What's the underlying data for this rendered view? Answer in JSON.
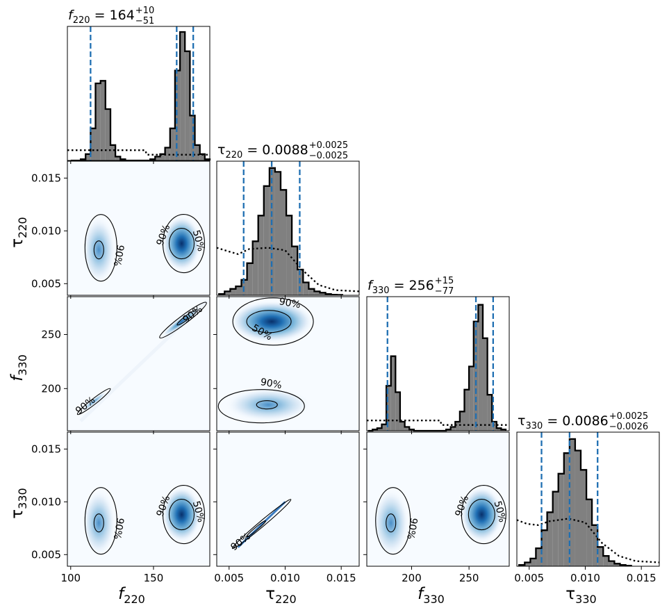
{
  "chart_data": {
    "type": "corner",
    "params": [
      {
        "key": "f220",
        "sym": "f",
        "sub": "220",
        "range": [
          98,
          184
        ],
        "ticks": [
          100,
          150
        ],
        "tick_labels": [
          "100",
          "150"
        ],
        "title_value": "164",
        "title_plus": "+10",
        "title_minus": "−51",
        "quantiles": [
          112,
          164,
          174
        ]
      },
      {
        "key": "tau220",
        "sym": "τ",
        "sub": "220",
        "range": [
          0.0039,
          0.0166
        ],
        "ticks": [
          0.005,
          0.01,
          0.015
        ],
        "tick_labels": [
          "0.005",
          "0.010",
          "0.015"
        ],
        "title_value": "0.0088",
        "title_plus": "+0.0025",
        "title_minus": "−0.0025",
        "quantiles": [
          0.0063,
          0.0088,
          0.0113
        ]
      },
      {
        "key": "f330",
        "sym": "f",
        "sub": "330",
        "range": [
          161,
          285
        ],
        "ticks": [
          200,
          250
        ],
        "tick_labels": [
          "200",
          "250"
        ],
        "title_value": "256",
        "title_plus": "+15",
        "title_minus": "−77",
        "quantiles": [
          179,
          256,
          271
        ]
      },
      {
        "key": "tau330",
        "sym": "τ",
        "sub": "330",
        "range": [
          0.0039,
          0.0166
        ],
        "ticks": [
          0.005,
          0.01,
          0.015
        ],
        "tick_labels": [
          "0.005",
          "0.010",
          "0.015"
        ],
        "title_value": "0.0086",
        "title_plus": "+0.0025",
        "title_minus": "−0.0026",
        "quantiles": [
          0.0061,
          0.0086,
          0.0111
        ]
      }
    ],
    "histograms": [
      {
        "param": "f220",
        "bins": [
          [
            100,
            0
          ],
          [
            103,
            0
          ],
          [
            106,
            0.01
          ],
          [
            109,
            0.05
          ],
          [
            112,
            0.25
          ],
          [
            115,
            0.6
          ],
          [
            118,
            0.62
          ],
          [
            121,
            0.4
          ],
          [
            124,
            0.12
          ],
          [
            127,
            0.03
          ],
          [
            130,
            0.01
          ],
          [
            133,
            0
          ],
          [
            136,
            0
          ],
          [
            139,
            0
          ],
          [
            142,
            0
          ],
          [
            145,
            0
          ],
          [
            148,
            0.01
          ],
          [
            151,
            0.03
          ],
          [
            154,
            0.05
          ],
          [
            157,
            0.1
          ],
          [
            160,
            0.25
          ],
          [
            163,
            0.7
          ],
          [
            166,
            1.0
          ],
          [
            169,
            0.85
          ],
          [
            172,
            0.35
          ],
          [
            175,
            0.12
          ],
          [
            178,
            0.05
          ],
          [
            181,
            0.01
          ]
        ],
        "prior": [
          [
            98,
            0.08
          ],
          [
            145,
            0.08
          ],
          [
            146,
            0.045
          ],
          [
            184,
            0.045
          ]
        ]
      },
      {
        "param": "tau220",
        "bins": [
          [
            0.0041,
            0.01
          ],
          [
            0.0046,
            0.03
          ],
          [
            0.0051,
            0.05
          ],
          [
            0.0056,
            0.07
          ],
          [
            0.0061,
            0.12
          ],
          [
            0.0066,
            0.25
          ],
          [
            0.0071,
            0.42
          ],
          [
            0.0076,
            0.62
          ],
          [
            0.0081,
            0.85
          ],
          [
            0.0086,
            0.99
          ],
          [
            0.0091,
            0.96
          ],
          [
            0.0096,
            0.82
          ],
          [
            0.0101,
            0.62
          ],
          [
            0.0106,
            0.38
          ],
          [
            0.0111,
            0.2
          ],
          [
            0.0116,
            0.1
          ],
          [
            0.0121,
            0.05
          ],
          [
            0.0126,
            0.03
          ],
          [
            0.0131,
            0.02
          ],
          [
            0.0136,
            0.01
          ],
          [
            0.0141,
            0.005
          ],
          [
            0.0146,
            0.003
          ]
        ],
        "prior": [
          [
            0.0039,
            0.37
          ],
          [
            0.005,
            0.34
          ],
          [
            0.0058,
            0.32
          ],
          [
            0.0068,
            0.36
          ],
          [
            0.0085,
            0.37
          ],
          [
            0.01,
            0.35
          ],
          [
            0.0115,
            0.2
          ],
          [
            0.013,
            0.08
          ],
          [
            0.0145,
            0.04
          ],
          [
            0.0166,
            0.03
          ]
        ]
      },
      {
        "param": "f330",
        "bins": [
          [
            162,
            0
          ],
          [
            166,
            0.01
          ],
          [
            170,
            0.02
          ],
          [
            174,
            0.05
          ],
          [
            178,
            0.35
          ],
          [
            182,
            0.58
          ],
          [
            186,
            0.3
          ],
          [
            190,
            0.07
          ],
          [
            194,
            0.03
          ],
          [
            198,
            0.01
          ],
          [
            202,
            0
          ],
          [
            206,
            0
          ],
          [
            210,
            0
          ],
          [
            214,
            0
          ],
          [
            218,
            0
          ],
          [
            222,
            0
          ],
          [
            226,
            0
          ],
          [
            230,
            0.01
          ],
          [
            234,
            0.03
          ],
          [
            238,
            0.07
          ],
          [
            242,
            0.15
          ],
          [
            246,
            0.32
          ],
          [
            250,
            0.5
          ],
          [
            254,
            0.85
          ],
          [
            258,
            0.98
          ],
          [
            262,
            0.72
          ],
          [
            266,
            0.28
          ],
          [
            270,
            0.07
          ],
          [
            274,
            0.02
          ],
          [
            278,
            0.01
          ]
        ],
        "prior": [
          [
            161,
            0.08
          ],
          [
            225,
            0.08
          ],
          [
            226,
            0.045
          ],
          [
            285,
            0.045
          ]
        ]
      },
      {
        "param": "tau330",
        "bins": [
          [
            0.0041,
            0.01
          ],
          [
            0.0046,
            0.03
          ],
          [
            0.0051,
            0.06
          ],
          [
            0.0056,
            0.14
          ],
          [
            0.0061,
            0.28
          ],
          [
            0.0066,
            0.42
          ],
          [
            0.0071,
            0.58
          ],
          [
            0.0076,
            0.72
          ],
          [
            0.0081,
            0.88
          ],
          [
            0.0086,
            0.99
          ],
          [
            0.0091,
            0.9
          ],
          [
            0.0096,
            0.75
          ],
          [
            0.0101,
            0.52
          ],
          [
            0.0106,
            0.32
          ],
          [
            0.0111,
            0.15
          ],
          [
            0.0116,
            0.08
          ],
          [
            0.0121,
            0.04
          ],
          [
            0.0126,
            0.02
          ],
          [
            0.0131,
            0.01
          ],
          [
            0.0136,
            0.005
          ]
        ],
        "prior": [
          [
            0.0039,
            0.36
          ],
          [
            0.0048,
            0.33
          ],
          [
            0.0058,
            0.32
          ],
          [
            0.0068,
            0.35
          ],
          [
            0.0085,
            0.37
          ],
          [
            0.01,
            0.34
          ],
          [
            0.0115,
            0.18
          ],
          [
            0.013,
            0.08
          ],
          [
            0.0145,
            0.04
          ],
          [
            0.0166,
            0.03
          ]
        ]
      }
    ],
    "contour_labels": {
      "inner": "50%",
      "outer": "90%"
    },
    "color_map": "Blues",
    "quantile_line_color": "#1f6fb2",
    "hist_fill": "#808080"
  }
}
